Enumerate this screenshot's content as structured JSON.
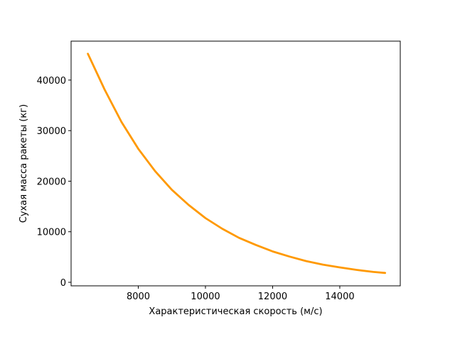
{
  "chart_data": {
    "type": "line",
    "title": "",
    "xlabel": "Характеристическая скорость (м/с)",
    "ylabel": "Сухая масса ракеты (кг)",
    "xlim": [
      6000,
      15800
    ],
    "ylim": [
      -700,
      47700
    ],
    "xticks": [
      8000,
      10000,
      12000,
      14000
    ],
    "yticks": [
      0,
      10000,
      20000,
      30000,
      40000
    ],
    "xtick_labels": [
      "8000",
      "10000",
      "12000",
      "14000"
    ],
    "ytick_labels": [
      "0",
      "10000",
      "20000",
      "30000",
      "40000"
    ],
    "grid": false,
    "legend": "none",
    "series": [
      {
        "color": "#ff9900",
        "x": [
          6500,
          7000,
          7500,
          8000,
          8500,
          9000,
          9500,
          10000,
          10500,
          11000,
          11500,
          12000,
          12500,
          13000,
          13500,
          14000,
          14500,
          15000,
          15350
        ],
        "y": [
          45200,
          38100,
          31700,
          26400,
          22000,
          18300,
          15300,
          12700,
          10600,
          8800,
          7400,
          6100,
          5100,
          4200,
          3500,
          2950,
          2450,
          2050,
          1850
        ]
      }
    ]
  }
}
